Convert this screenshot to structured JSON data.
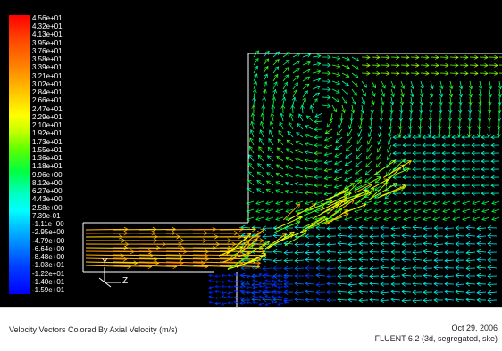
{
  "colorbar": {
    "labels": [
      "4.56e+01",
      "4.32e+01",
      "4.13e+01",
      "3.95e+01",
      "3.76e+01",
      "3.58e+01",
      "3.39e+01",
      "3.21e+01",
      "3.02e+01",
      "2.84e+01",
      "2.66e+01",
      "2.47e+01",
      "2.29e+01",
      "2.10e+01",
      "1.92e+01",
      "1.73e+01",
      "1.55e+01",
      "1.36e+01",
      "1.18e+01",
      "9.96e+00",
      "8.12e+00",
      "6.27e+00",
      "4.43e+00",
      "2.58e+00",
      "7.39e-01",
      "-1.11e+00",
      "-2.95e+00",
      "-4.79e+00",
      "-6.64e+00",
      "-8.48e+00",
      "-1.03e+01",
      "-1.22e+01",
      "-1.40e+01",
      "-1.59e+01"
    ]
  },
  "axes": {
    "y_label": "Y",
    "z_label": "Z"
  },
  "footer": {
    "caption": "Velocity Vectors Colored By Axial Velocity (m/s)",
    "date": "Oct 29, 2006",
    "solver": "FLUENT 6.2 (3d, segregated, ske)"
  }
}
